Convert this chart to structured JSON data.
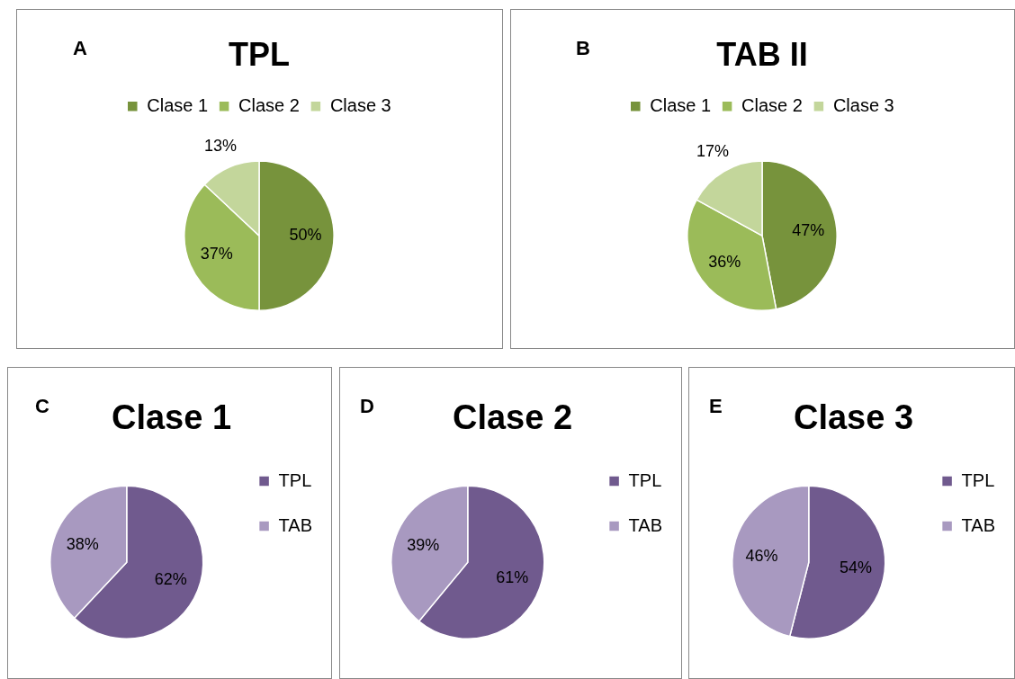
{
  "chart_data": [
    {
      "type": "pie",
      "title": "TPL",
      "categories": [
        "Clase 1",
        "Clase 2",
        "Clase 3"
      ],
      "values": [
        50,
        37,
        13
      ],
      "value_labels": [
        "50%",
        "37%",
        "13%"
      ],
      "colors": [
        "#77933c",
        "#9bbb59",
        "#c3d69b"
      ],
      "legend": "top",
      "annotations": [
        "A"
      ]
    },
    {
      "type": "pie",
      "title": "TAB II",
      "categories": [
        "Clase 1",
        "Clase 2",
        "Clase 3"
      ],
      "values": [
        47,
        36,
        17
      ],
      "value_labels": [
        "47%",
        "36%",
        "17%"
      ],
      "colors": [
        "#77933c",
        "#9bbb59",
        "#c3d69b"
      ],
      "legend": "top",
      "annotations": [
        "B"
      ]
    },
    {
      "type": "pie",
      "title": "Clase 1",
      "categories": [
        "TPL",
        "TAB"
      ],
      "values": [
        62,
        38
      ],
      "value_labels": [
        "62%",
        "38%"
      ],
      "colors": [
        "#705a8e",
        "#a899c0"
      ],
      "legend": "right",
      "annotations": [
        "C"
      ]
    },
    {
      "type": "pie",
      "title": "Clase 2",
      "categories": [
        "TPL",
        "TAB"
      ],
      "values": [
        61,
        39
      ],
      "value_labels": [
        "61%",
        "39%"
      ],
      "colors": [
        "#705a8e",
        "#a899c0"
      ],
      "legend": "right",
      "annotations": [
        "D"
      ]
    },
    {
      "type": "pie",
      "title": "Clase 3",
      "categories": [
        "TPL",
        "TAB"
      ],
      "values": [
        54,
        46
      ],
      "value_labels": [
        "54%",
        "46%"
      ],
      "colors": [
        "#705a8e",
        "#a899c0"
      ],
      "legend": "right",
      "annotations": [
        "E"
      ]
    }
  ]
}
